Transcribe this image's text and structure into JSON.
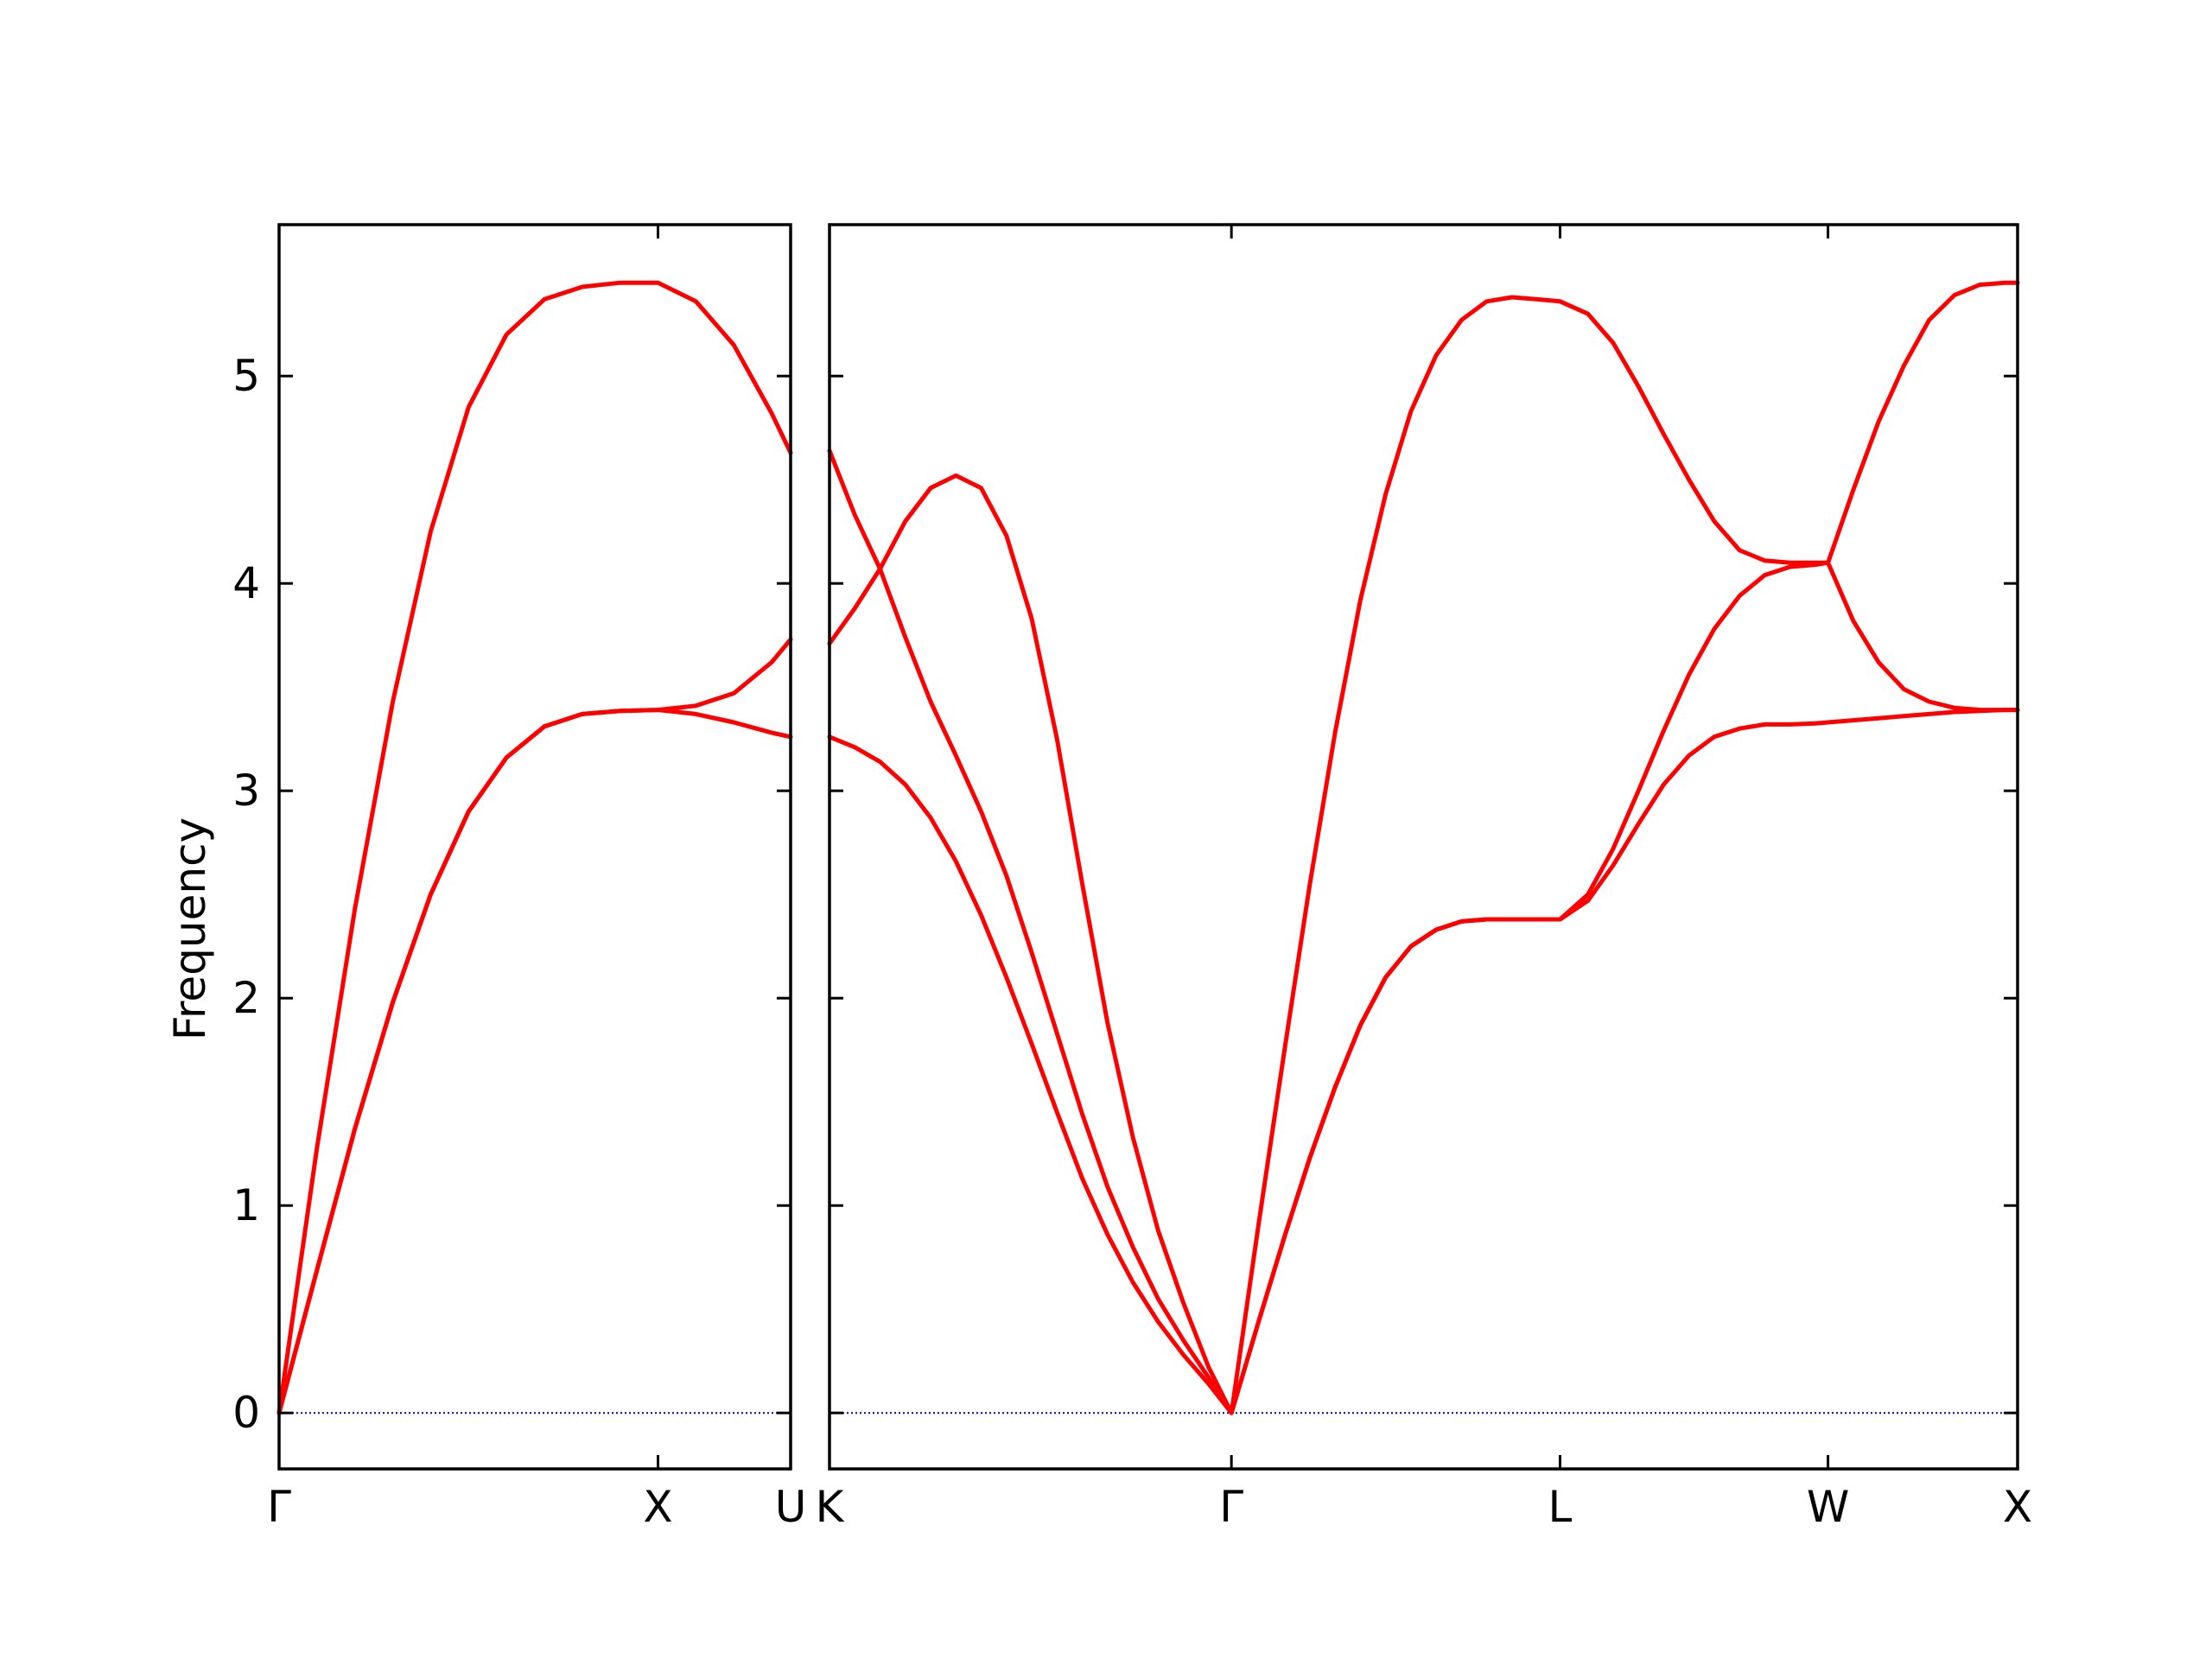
{
  "chart_data": {
    "type": "line",
    "ylabel": "Frequency",
    "ylim": [
      -0.27,
      5.73
    ],
    "yticks": [
      0,
      1,
      2,
      3,
      4,
      5
    ],
    "zero_line": {
      "y": 0,
      "style": "dotted",
      "color": "#0000cc"
    },
    "line_color": "#ff0000",
    "panels": [
      {
        "segments": [
          "Γ-X",
          "X-U"
        ],
        "xlim": [
          0,
          1.35
        ],
        "xticks": [
          {
            "x": 0,
            "label": "Γ"
          },
          {
            "x": 1.0,
            "label": "X"
          },
          {
            "x": 1.35,
            "label": "U"
          }
        ],
        "bands": [
          {
            "name": "",
            "x": [
              0,
              0.1,
              0.2,
              0.3,
              0.4,
              0.5,
              0.6,
              0.7,
              0.8,
              0.9,
              1.0,
              1.1,
              1.2,
              1.3,
              1.35
            ],
            "y": [
              0,
              1.28,
              2.43,
              3.43,
              4.25,
              4.85,
              5.2,
              5.37,
              5.43,
              5.45,
              5.45,
              5.36,
              5.15,
              4.82,
              4.63
            ]
          },
          {
            "name": "",
            "x": [
              0,
              0.1,
              0.2,
              0.3,
              0.4,
              0.5,
              0.6,
              0.7,
              0.8,
              0.9,
              1.0,
              1.1,
              1.2,
              1.3,
              1.35
            ],
            "y": [
              0,
              0.69,
              1.37,
              1.98,
              2.5,
              2.9,
              3.16,
              3.31,
              3.37,
              3.385,
              3.39,
              3.41,
              3.47,
              3.62,
              3.73
            ]
          },
          {
            "name": "",
            "x": [
              0,
              0.1,
              0.2,
              0.3,
              0.4,
              0.5,
              0.6,
              0.7,
              0.8,
              0.9,
              1.0,
              1.1,
              1.2,
              1.3,
              1.35
            ],
            "y": [
              0,
              0.69,
              1.37,
              1.98,
              2.5,
              2.9,
              3.16,
              3.31,
              3.37,
              3.385,
              3.39,
              3.37,
              3.33,
              3.28,
              3.26
            ]
          }
        ]
      },
      {
        "segments": [
          "K-Γ",
          "Γ-L",
          "L-W",
          "W-X"
        ],
        "xlim": [
          0,
          4.7
        ],
        "xticks": [
          {
            "x": 0,
            "label": "K"
          },
          {
            "x": 1.59,
            "label": "Γ"
          },
          {
            "x": 2.89,
            "label": "L"
          },
          {
            "x": 3.95,
            "label": "W"
          },
          {
            "x": 4.7,
            "label": "X"
          }
        ],
        "bands": [
          {
            "name": "",
            "x": [
              0,
              0.1,
              0.2,
              0.3,
              0.4,
              0.5,
              0.6,
              0.7,
              0.8,
              0.9,
              1.0,
              1.1,
              1.2,
              1.3,
              1.4,
              1.5,
              1.59,
              1.7,
              1.8,
              1.9,
              2.0,
              2.1,
              2.2,
              2.3,
              2.4,
              2.5,
              2.6,
              2.7,
              2.8,
              2.89,
              3.0,
              3.1,
              3.2,
              3.3,
              3.4,
              3.5,
              3.6,
              3.7,
              3.8,
              3.9,
              3.95,
              4.05,
              4.15,
              4.25,
              4.35,
              4.45,
              4.55,
              4.65,
              4.7
            ],
            "y": [
              4.64,
              4.33,
              4.07,
              4.3,
              4.46,
              4.52,
              4.46,
              4.23,
              3.83,
              3.25,
              2.55,
              1.88,
              1.33,
              0.88,
              0.53,
              0.22,
              0,
              0.93,
              1.75,
              2.55,
              3.28,
              3.92,
              4.43,
              4.83,
              5.1,
              5.27,
              5.36,
              5.38,
              5.37,
              5.36,
              5.3,
              5.16,
              4.95,
              4.72,
              4.5,
              4.3,
              4.16,
              4.11,
              4.1,
              4.1,
              4.1,
              4.45,
              4.78,
              5.05,
              5.27,
              5.39,
              5.44,
              5.45,
              5.45
            ]
          },
          {
            "name": "",
            "x": [
              0,
              0.1,
              0.2,
              0.3,
              0.4,
              0.5,
              0.6,
              0.7,
              0.8,
              0.9,
              1.0,
              1.1,
              1.2,
              1.3,
              1.4,
              1.5,
              1.59,
              1.7,
              1.8,
              1.9,
              2.0,
              2.1,
              2.2,
              2.3,
              2.4,
              2.5,
              2.6,
              2.7,
              2.8,
              2.89,
              3.0,
              3.1,
              3.2,
              3.3,
              3.4,
              3.5,
              3.6,
              3.7,
              3.8,
              3.9,
              3.95,
              4.05,
              4.15,
              4.25,
              4.35,
              4.45,
              4.55,
              4.65,
              4.7
            ],
            "y": [
              3.71,
              3.88,
              4.07,
              3.74,
              3.43,
              3.17,
              2.9,
              2.59,
              2.22,
              1.83,
              1.44,
              1.09,
              0.8,
              0.55,
              0.35,
              0.17,
              0,
              0.45,
              0.85,
              1.23,
              1.57,
              1.87,
              2.1,
              2.25,
              2.33,
              2.37,
              2.38,
              2.38,
              2.38,
              2.38,
              2.5,
              2.72,
              3.0,
              3.29,
              3.56,
              3.78,
              3.94,
              4.04,
              4.08,
              4.09,
              4.1,
              3.82,
              3.62,
              3.49,
              3.43,
              3.4,
              3.39,
              3.39,
              3.39
            ]
          },
          {
            "name": "",
            "x": [
              0,
              0.1,
              0.2,
              0.3,
              0.4,
              0.5,
              0.6,
              0.7,
              0.8,
              0.9,
              1.0,
              1.1,
              1.2,
              1.3,
              1.4,
              1.5,
              1.59,
              1.7,
              1.8,
              1.9,
              2.0,
              2.1,
              2.2,
              2.3,
              2.4,
              2.5,
              2.6,
              2.7,
              2.8,
              2.89,
              3.0,
              3.1,
              3.2,
              3.3,
              3.4,
              3.5,
              3.6,
              3.7,
              3.8,
              3.9,
              3.95,
              4.05,
              4.15,
              4.25,
              4.35,
              4.45,
              4.55,
              4.65,
              4.7
            ],
            "y": [
              3.26,
              3.21,
              3.14,
              3.03,
              2.87,
              2.66,
              2.4,
              2.1,
              1.78,
              1.45,
              1.13,
              0.86,
              0.63,
              0.44,
              0.28,
              0.14,
              0,
              0.45,
              0.85,
              1.23,
              1.57,
              1.87,
              2.1,
              2.25,
              2.33,
              2.37,
              2.38,
              2.38,
              2.38,
              2.38,
              2.47,
              2.64,
              2.84,
              3.03,
              3.17,
              3.26,
              3.3,
              3.32,
              3.32,
              3.325,
              3.33,
              3.34,
              3.35,
              3.36,
              3.37,
              3.38,
              3.385,
              3.39,
              3.39
            ]
          }
        ]
      }
    ]
  }
}
